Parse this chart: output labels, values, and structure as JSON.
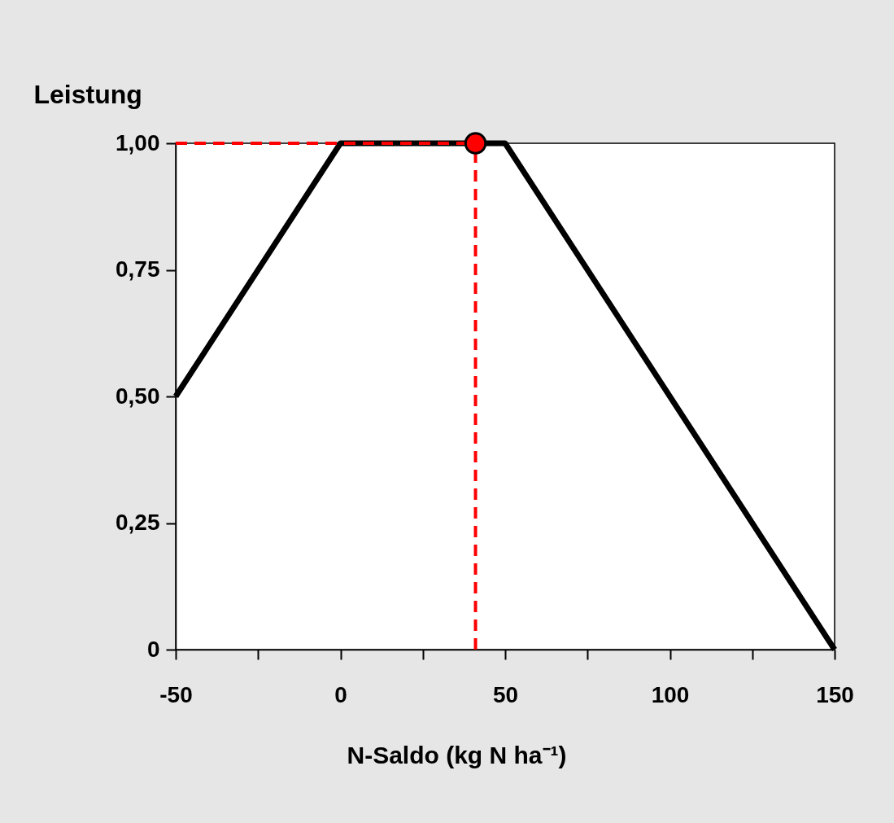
{
  "chart_data": {
    "type": "line",
    "xlabel": "N-Saldo (kg N ha⁻¹)",
    "ylabel": "Leistung",
    "x": [
      -50,
      0,
      50,
      150
    ],
    "series": [
      {
        "color": "#000000",
        "values": [
          0.5,
          1.0,
          1.0,
          0
        ]
      },
      {
        "type": "scatter",
        "color": "#ff0000",
        "x": [
          41
        ],
        "values": [
          1.0
        ],
        "marker": "circle"
      }
    ],
    "xlim": [
      -50,
      150
    ],
    "ylim": [
      0,
      1
    ],
    "xticks": [
      -50,
      {
        "value": -25,
        "label": null
      },
      0,
      {
        "value": 25,
        "label": null
      },
      50,
      {
        "value": 75,
        "label": null
      },
      100,
      {
        "value": 125,
        "label": null
      },
      150
    ],
    "yticks": [
      0,
      {
        "value": 0.25,
        "label": "0,25"
      },
      {
        "value": 0.5,
        "label": "0,50"
      },
      {
        "value": 0.75,
        "label": "0,75"
      },
      {
        "value": 1,
        "label": "1,00"
      }
    ],
    "ref_lines": [
      {
        "axis": "x",
        "value": 41,
        "color": "#ff0000",
        "line_style": "dashed"
      },
      {
        "axis": "y",
        "value": 1,
        "color": "#ff0000",
        "line_style": "dashed"
      }
    ],
    "grid": false,
    "line_style": "solid"
  }
}
